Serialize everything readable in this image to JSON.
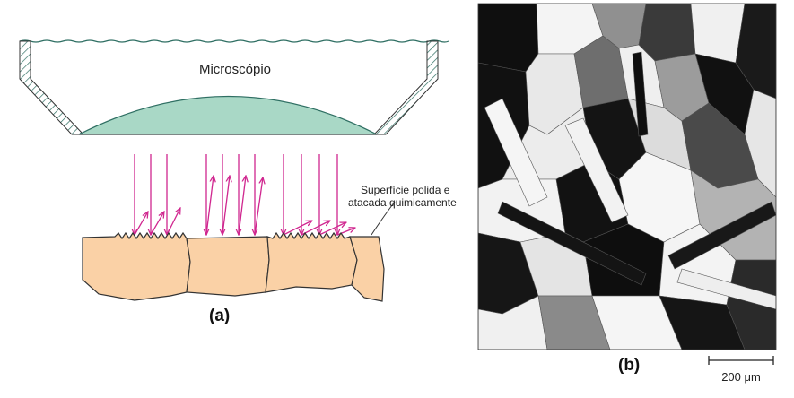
{
  "panel_a": {
    "label": "(a)",
    "microscope_label": "Microscópio",
    "surface_label_line1": "Superfície polida e",
    "surface_label_line2": "atacada quimicamente"
  },
  "panel_b": {
    "label": "(b)",
    "scale_bar_label": "200 μm"
  },
  "colors": {
    "lens": "#a9d8c6",
    "lens_outline": "#2f7a62",
    "grain_fill": "#fad1a6",
    "light_rays": "#d0268f",
    "outline": "#333333"
  }
}
